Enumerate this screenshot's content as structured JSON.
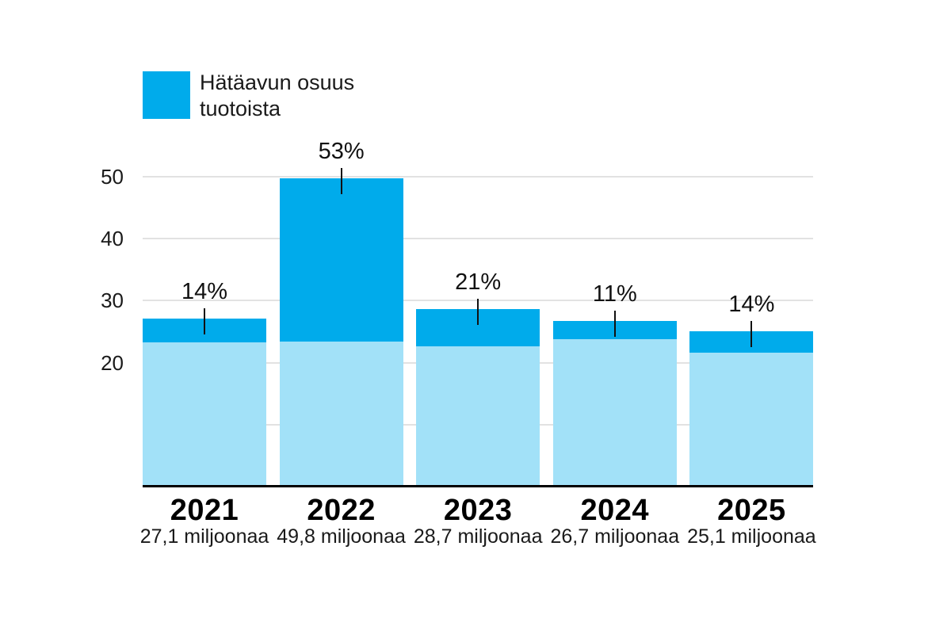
{
  "chart_data": {
    "type": "bar",
    "stacked": true,
    "legend": {
      "label": "Hätäavun osuus tuotoista",
      "position": "top-left"
    },
    "categories": [
      "2021",
      "2022",
      "2023",
      "2024",
      "2025"
    ],
    "bars": [
      {
        "year": "2021",
        "total": 27.1,
        "total_label": "27,1 miljoonaa",
        "share_pct": 14,
        "share_label": "14%"
      },
      {
        "year": "2022",
        "total": 49.8,
        "total_label": "49,8 miljoonaa",
        "share_pct": 53,
        "share_label": "53%"
      },
      {
        "year": "2023",
        "total": 28.7,
        "total_label": "28,7 miljoonaa",
        "share_pct": 21,
        "share_label": "21%"
      },
      {
        "year": "2024",
        "total": 26.7,
        "total_label": "26,7 miljoonaa",
        "share_pct": 11,
        "share_label": "11%"
      },
      {
        "year": "2025",
        "total": 25.1,
        "total_label": "25,1 miljoonaa",
        "share_pct": 14,
        "share_label": "14%"
      }
    ],
    "y_axis": {
      "grid_ticks": [
        10,
        20,
        30,
        40,
        50
      ],
      "labeled_ticks": [
        "20",
        "30",
        "40",
        "50"
      ],
      "ylim": [
        0,
        55
      ],
      "grid": true
    },
    "colors": {
      "highlight": "#00ABEB",
      "base": "#A2E1F8",
      "grid": "#E2E2E2",
      "axis": "#000000",
      "text": "#1A1A1A"
    }
  }
}
